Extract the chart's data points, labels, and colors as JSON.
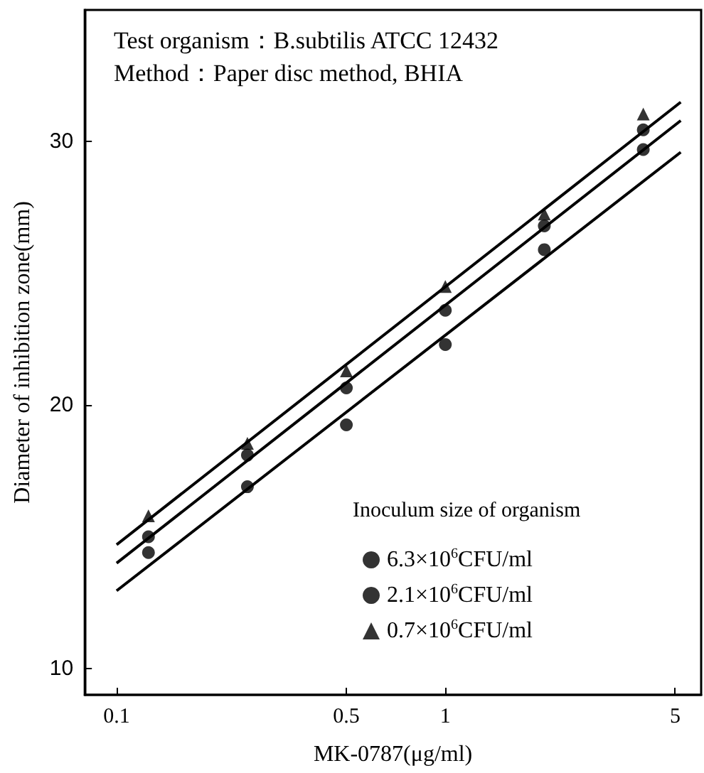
{
  "chart_data": {
    "type": "scatter",
    "xlabel": "MK-0787(μg/ml)",
    "ylabel": "Diameter of inhibition zone(mm)",
    "legend_title": "Inoculum size of organism",
    "annotations": [
      "Test organism：B.subtilis ATCC 12432",
      "Method：Paper disc method, BHIA"
    ],
    "log": "x",
    "xlim": [
      0.08,
      6
    ],
    "xticks": [
      0.1,
      0.5,
      1,
      5
    ],
    "ylim": [
      9,
      35
    ],
    "yticks": [
      10,
      20,
      30
    ],
    "grid": false,
    "legend": "bottom right",
    "series": [
      {
        "name": "6.3×10$^{6}$CFU/ml",
        "marker": "circle",
        "color": "#000000",
        "x": [
          0.125,
          0.25,
          0.5,
          1,
          2,
          4
        ],
        "values": [
          14.4,
          16.9,
          19.25,
          22.3,
          25.9,
          29.7
        ]
      },
      {
        "name": "2.1×10$^{6}$CFU/ml",
        "marker": "circle",
        "color": "#000000",
        "x": [
          0.125,
          0.25,
          0.5,
          1,
          2,
          4
        ],
        "values": [
          15.0,
          18.1,
          20.65,
          23.6,
          26.8,
          30.45
        ]
      },
      {
        "name": "0.7×10$^{6}$CFU/ml",
        "marker": "triangle",
        "color": "#000000",
        "x": [
          0.125,
          0.25,
          0.5,
          1,
          2,
          4
        ],
        "values": [
          15.8,
          18.55,
          21.3,
          24.5,
          27.25,
          31.05
        ]
      },
      {
        "type": "line",
        "marker": "none",
        "color": "#000000",
        "x": [
          0.1,
          5.2
        ],
        "values": [
          12.95,
          29.6
        ]
      },
      {
        "type": "line",
        "marker": "none",
        "color": "#000000",
        "x": [
          0.1,
          5.2
        ],
        "values": [
          14.0,
          30.8
        ]
      },
      {
        "type": "line",
        "marker": "none",
        "color": "#000000",
        "x": [
          0.1,
          5.2
        ],
        "values": [
          14.7,
          31.5
        ]
      }
    ]
  }
}
